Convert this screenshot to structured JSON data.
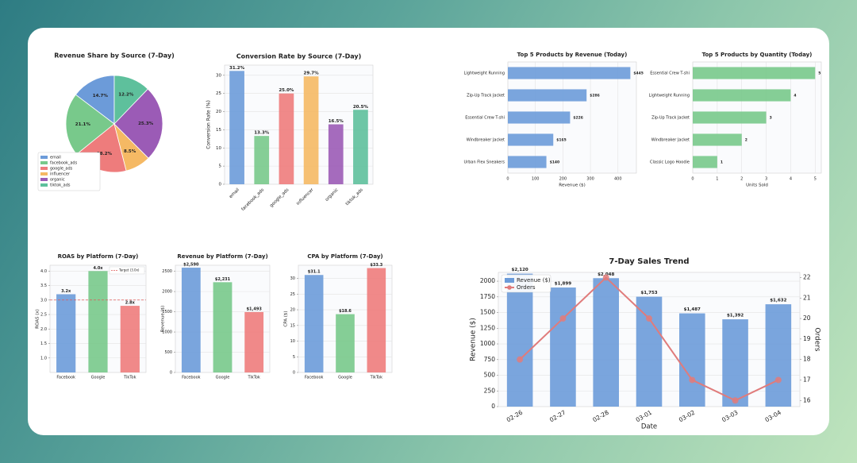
{
  "chart_data": [
    {
      "type": "pie",
      "title": "Revenue Share by Source (7-Day)",
      "categories": [
        "email",
        "facebook_ads",
        "google_ads",
        "influencer",
        "organic",
        "tiktok_ads"
      ],
      "values": [
        14.7,
        21.1,
        18.2,
        8.5,
        25.3,
        12.2
      ],
      "value_labels": [
        "14.7%",
        "21.1%",
        "18.2%",
        "8.5%",
        "25.3%",
        "12.2%"
      ],
      "colors": [
        "#6c9bd9",
        "#78c98b",
        "#ee7c7c",
        "#f5b964",
        "#9b5bb6",
        "#5ec09c"
      ]
    },
    {
      "type": "bar",
      "title": "Conversion Rate by Source (7-Day)",
      "ylabel": "Conversion Rate (%)",
      "categories": [
        "email",
        "facebook_ads",
        "google_ads",
        "influencer",
        "organic",
        "tiktok_ads"
      ],
      "values": [
        31.2,
        13.3,
        25.0,
        29.7,
        16.5,
        20.5
      ],
      "value_labels": [
        "31.2%",
        "13.3%",
        "25.0%",
        "29.7%",
        "16.5%",
        "20.5%"
      ],
      "colors": [
        "#6c9bd9",
        "#78c98b",
        "#ee7c7c",
        "#f5b964",
        "#9b5bb6",
        "#5ec09c"
      ],
      "ylim": [
        0,
        32.8
      ],
      "yticks": [
        0,
        5,
        10,
        15,
        20,
        25,
        30
      ],
      "grid": true
    },
    {
      "type": "barh",
      "title": "Top 5 Products by Revenue (Today)",
      "xlabel": "Revenue ($)",
      "categories": [
        "Lightweight Running",
        "Zip-Up Track Jacket",
        "Essential Crew T-shi",
        "Windbreaker Jacket",
        "Urban Flex Sneakers"
      ],
      "values": [
        445,
        286,
        226,
        165,
        140
      ],
      "value_labels": [
        "$445",
        "$286",
        "$226",
        "$165",
        "$140"
      ],
      "color": "#6c9bd9",
      "xlim": [
        0,
        467
      ],
      "xticks": [
        0,
        100,
        200,
        300,
        400
      ],
      "grid": true
    },
    {
      "type": "barh",
      "title": "Top 5 Products by Quantity (Today)",
      "xlabel": "Units Sold",
      "categories": [
        "Essential Crew T-shi",
        "Lightweight Running",
        "Zip-Up Track Jacket",
        "Windbreaker Jacket",
        "Classic Logo Hoodie"
      ],
      "values": [
        5,
        4,
        3,
        2,
        1
      ],
      "color": "#78c98b",
      "xlim": [
        0,
        5.25
      ],
      "xticks": [
        0,
        1,
        2,
        3,
        4,
        5
      ],
      "grid": true
    },
    {
      "type": "bar",
      "title": "ROAS by Platform (7-Day)",
      "ylabel": "ROAS (x)",
      "categories": [
        "Facebook",
        "Google",
        "TikTok"
      ],
      "values": [
        3.2,
        4.0,
        2.8
      ],
      "value_labels": [
        "3.2x",
        "4.0x",
        "2.8x"
      ],
      "colors": [
        "#6c9bd9",
        "#78c98b",
        "#ee7c7c"
      ],
      "target": {
        "value": 3,
        "label": "Target (3.0x)",
        "color": "#e05a5a"
      },
      "ylim": [
        0.5,
        4.2
      ],
      "yticks": [
        {
          "value": 1,
          "label": "1.0"
        },
        {
          "value": 1.5,
          "label": "1.5"
        },
        {
          "value": 2,
          "label": "2.0"
        },
        {
          "value": 2.5,
          "label": "2.5"
        },
        {
          "value": 3,
          "label": "3.0"
        },
        {
          "value": 3.5,
          "label": "3.5"
        },
        {
          "value": 4,
          "label": "4.0"
        }
      ],
      "grid": true
    },
    {
      "type": "bar",
      "title": "Revenue by Platform (7-Day)",
      "ylabel": "Revenue ($)",
      "categories": [
        "Facebook",
        "Google",
        "TikTok"
      ],
      "values": [
        2590,
        2231,
        1493
      ],
      "value_labels": [
        "$2,590",
        "$2,231",
        "$1,493"
      ],
      "colors": [
        "#6c9bd9",
        "#78c98b",
        "#ee7c7c"
      ],
      "ylim": [
        0,
        2650
      ],
      "yticks": [
        0,
        500,
        1000,
        1500,
        2000,
        2500
      ],
      "grid": true
    },
    {
      "type": "bar",
      "title": "CPA by Platform (7-Day)",
      "ylabel": "CPA ($)",
      "categories": [
        "Facebook",
        "Google",
        "TikTok"
      ],
      "values": [
        31.1,
        18.6,
        33.3
      ],
      "value_labels": [
        "$31.1",
        "$18.6",
        "$33.3"
      ],
      "colors": [
        "#6c9bd9",
        "#78c98b",
        "#ee7c7c"
      ],
      "ylim": [
        0,
        34.2
      ],
      "yticks": [
        0,
        5,
        10,
        15,
        20,
        25,
        30
      ],
      "grid": true
    },
    {
      "type": "combo",
      "title": "7-Day Sales Trend",
      "xlabel": "Date",
      "ylabel": "Revenue ($)",
      "y2label": "Orders",
      "categories": [
        "02-26",
        "02-27",
        "02-28",
        "03-01",
        "03-02",
        "03-03",
        "03-04"
      ],
      "series": [
        {
          "name": "Revenue ($)",
          "color": "#6c9bd9",
          "axis": "y",
          "values": [
            2120,
            1899,
            2048,
            1753,
            1487,
            1392,
            1632
          ],
          "value_labels": [
            "$2,120",
            "$1,899",
            "$2,048",
            "$1,753",
            "$1,487",
            "$1,392",
            "$1,632"
          ]
        },
        {
          "name": "Orders",
          "color": "#e07b7b",
          "axis": "y2",
          "values": [
            18,
            20,
            22,
            20,
            17,
            16,
            17
          ]
        }
      ],
      "ylim": [
        0,
        2140
      ],
      "yticks": [
        0,
        250,
        500,
        750,
        1000,
        1250,
        1500,
        1750,
        2000
      ],
      "y2lim": [
        15.7,
        22.25
      ],
      "y2ticks": [
        16,
        17,
        18,
        19,
        20,
        21,
        22
      ],
      "grid": true,
      "legend": "upper left"
    }
  ]
}
